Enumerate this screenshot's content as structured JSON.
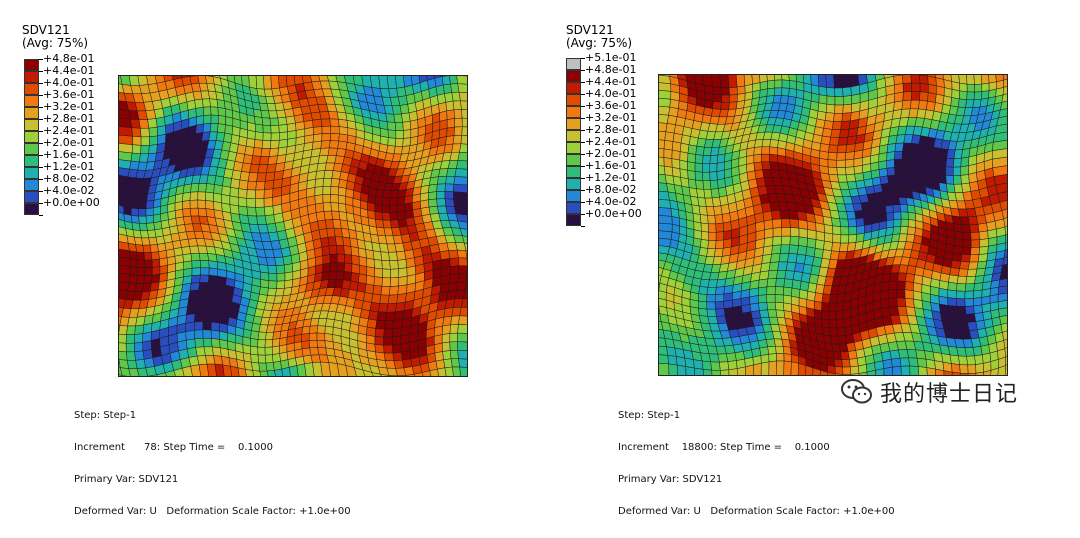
{
  "panels": [
    {
      "title": "SDV121",
      "subtitle": "(Avg: 75%)",
      "legend": [
        {
          "label": "+4.8e-01",
          "color": "#8b0000"
        },
        {
          "label": "+4.4e-01",
          "color": "#c21a00"
        },
        {
          "label": "+4.0e-01",
          "color": "#e04b00"
        },
        {
          "label": "+3.6e-01",
          "color": "#f07a10"
        },
        {
          "label": "+3.2e-01",
          "color": "#e6a020"
        },
        {
          "label": "+2.8e-01",
          "color": "#c8c030"
        },
        {
          "label": "+2.4e-01",
          "color": "#9ed03a"
        },
        {
          "label": "+2.0e-01",
          "color": "#5fc84a"
        },
        {
          "label": "+1.6e-01",
          "color": "#2fbe78"
        },
        {
          "label": "+1.2e-01",
          "color": "#1fb0b0"
        },
        {
          "label": "+8.0e-02",
          "color": "#2288d8"
        },
        {
          "label": "+4.0e-02",
          "color": "#2a4ec0"
        },
        {
          "label": "+0.0e+00",
          "color": "#2a1040"
        }
      ],
      "info": {
        "step": "Step: Step-1",
        "increment": "Increment      78: Step Time =    0.1000",
        "primary": "Primary Var: SDV121",
        "deformed": "Deformed Var: U   Deformation Scale Factor: +1.0e+00"
      }
    },
    {
      "title": "SDV121",
      "subtitle": "(Avg: 75%)",
      "legend": [
        {
          "label": "+5.1e-01",
          "color": "#c0c0c0"
        },
        {
          "label": "+4.8e-01",
          "color": "#8b0000"
        },
        {
          "label": "+4.4e-01",
          "color": "#c21a00"
        },
        {
          "label": "+4.0e-01",
          "color": "#e04b00"
        },
        {
          "label": "+3.6e-01",
          "color": "#f07a10"
        },
        {
          "label": "+3.2e-01",
          "color": "#e6a020"
        },
        {
          "label": "+2.8e-01",
          "color": "#c8c030"
        },
        {
          "label": "+2.4e-01",
          "color": "#9ed03a"
        },
        {
          "label": "+2.0e-01",
          "color": "#5fc84a"
        },
        {
          "label": "+1.6e-01",
          "color": "#2fbe78"
        },
        {
          "label": "+1.2e-01",
          "color": "#1fb0b0"
        },
        {
          "label": "+8.0e-02",
          "color": "#2288d8"
        },
        {
          "label": "+4.0e-02",
          "color": "#2a4ec0"
        },
        {
          "label": "+0.0e+00",
          "color": "#2a1040"
        }
      ],
      "info": {
        "step": "Step: Step-1",
        "increment": "Increment    18800: Step Time =    0.1000",
        "primary": "Primary Var: SDV121",
        "deformed": "Deformed Var: U   Deformation Scale Factor: +1.0e+00"
      }
    }
  ],
  "watermark": {
    "text": "我的博士日记",
    "icon": "wechat-icon"
  }
}
